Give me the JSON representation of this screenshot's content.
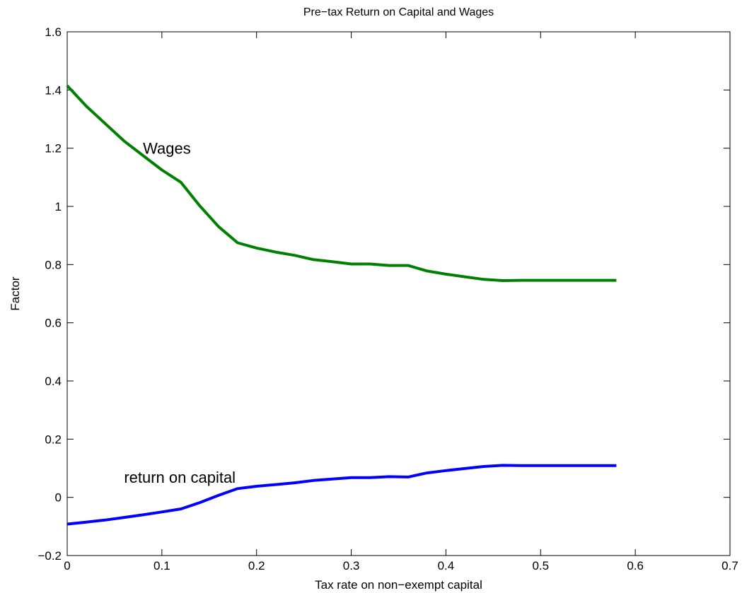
{
  "chart_data": {
    "type": "line",
    "title": "Pre−tax Return on Capital and Wages",
    "xlabel": "Tax rate on non−exempt capital",
    "ylabel": "Factor",
    "xlim": [
      0,
      0.7
    ],
    "ylim": [
      -0.2,
      1.6
    ],
    "xticks": [
      0,
      0.1,
      0.2,
      0.3,
      0.4,
      0.5,
      0.6,
      0.7
    ],
    "xtick_labels": [
      "0",
      "0.1",
      "0.2",
      "0.3",
      "0.4",
      "0.5",
      "0.6",
      "0.7"
    ],
    "yticks": [
      -0.2,
      0,
      0.2,
      0.4,
      0.6,
      0.8,
      1,
      1.2,
      1.4,
      1.6
    ],
    "ytick_labels": [
      "−0.2",
      "0",
      "0.2",
      "0.4",
      "0.6",
      "0.8",
      "1",
      "1.2",
      "1.4",
      "1.6"
    ],
    "grid": false,
    "legend": "none",
    "series": [
      {
        "name": "Wages",
        "color": "#008000",
        "x": [
          0,
          0.02,
          0.04,
          0.06,
          0.08,
          0.1,
          0.12,
          0.14,
          0.16,
          0.18,
          0.2,
          0.22,
          0.24,
          0.26,
          0.28,
          0.3,
          0.32,
          0.34,
          0.36,
          0.38,
          0.4,
          0.42,
          0.44,
          0.46,
          0.48,
          0.5,
          0.52,
          0.54,
          0.56,
          0.58
        ],
        "y": [
          1.415,
          1.345,
          1.285,
          1.225,
          1.175,
          1.125,
          1.083,
          1.002,
          0.93,
          0.875,
          0.857,
          0.843,
          0.832,
          0.817,
          0.81,
          0.802,
          0.802,
          0.797,
          0.797,
          0.778,
          0.767,
          0.758,
          0.749,
          0.745,
          0.746,
          0.746,
          0.746,
          0.746,
          0.746,
          0.746
        ]
      },
      {
        "name": "return on capital",
        "color": "#0000ff",
        "x": [
          0,
          0.02,
          0.04,
          0.06,
          0.08,
          0.1,
          0.12,
          0.14,
          0.16,
          0.18,
          0.2,
          0.22,
          0.24,
          0.26,
          0.28,
          0.3,
          0.32,
          0.34,
          0.36,
          0.38,
          0.4,
          0.42,
          0.44,
          0.46,
          0.48,
          0.5,
          0.52,
          0.54,
          0.56,
          0.58
        ],
        "y": [
          -0.092,
          -0.085,
          -0.078,
          -0.069,
          -0.06,
          -0.05,
          -0.04,
          -0.018,
          0.007,
          0.03,
          0.038,
          0.044,
          0.05,
          0.058,
          0.063,
          0.068,
          0.068,
          0.071,
          0.07,
          0.084,
          0.092,
          0.099,
          0.106,
          0.11,
          0.109,
          0.109,
          0.109,
          0.109,
          0.109,
          0.109
        ]
      }
    ],
    "annotations": [
      {
        "text": "Wages",
        "x": 0.08,
        "y": 1.2
      },
      {
        "text": "return on capital",
        "x": 0.06,
        "y": 0.07
      }
    ]
  }
}
